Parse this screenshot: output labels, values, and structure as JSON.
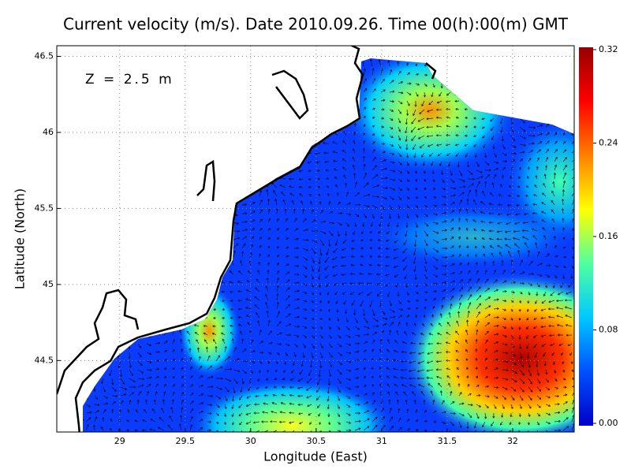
{
  "chart_data": {
    "type": "vector-field",
    "title": "Current velocity (m/s). Date 2010.09.26. Time 00(h):00(m) GMT",
    "annotation": "Z = 2.5 m",
    "xlabel": "Longitude (East)",
    "ylabel": "Latitude (North)",
    "xlim": [
      28.52,
      32.47
    ],
    "ylim": [
      44.03,
      46.57
    ],
    "xticks": [
      29,
      29.5,
      30,
      30.5,
      31,
      31.5,
      32
    ],
    "yticks": [
      44.5,
      45,
      45.5,
      46,
      46.5
    ],
    "grid": true,
    "colorbar": {
      "lim": [
        0,
        0.32
      ],
      "ticks": [
        {
          "value": 0,
          "label": "0.00"
        },
        {
          "value": 0.08,
          "label": "0.08"
        },
        {
          "value": 0.16,
          "label": "0.16"
        },
        {
          "value": 0.24,
          "label": "0.24"
        },
        {
          "value": 0.32,
          "label": "0.32"
        }
      ],
      "colormap": [
        "#0000c8",
        "#0050ff",
        "#00c8ff",
        "#50ffa0",
        "#ffff00",
        "#ff8000",
        "#ff0000",
        "#960000"
      ]
    }
  }
}
